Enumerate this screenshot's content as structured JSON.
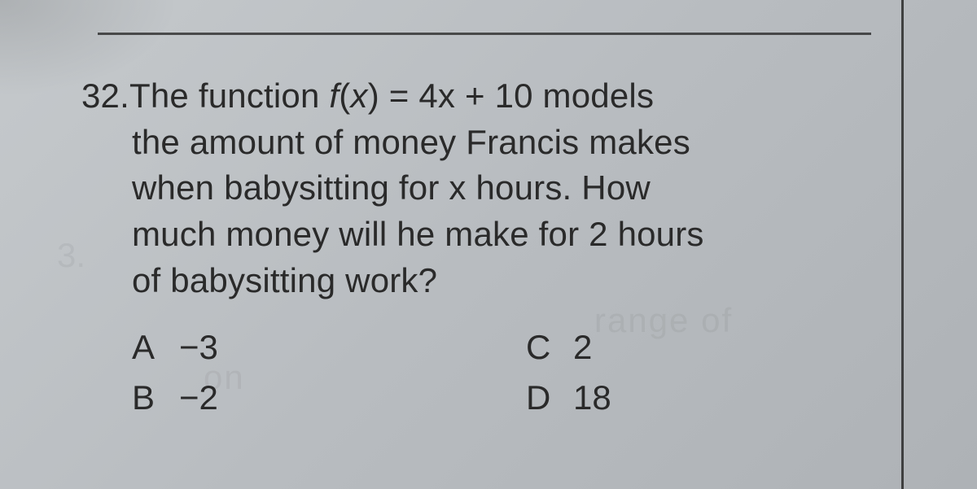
{
  "question": {
    "number": "32.",
    "line1_prefix": "The function ",
    "fn": "f",
    "fn_arg_open": "(",
    "fn_var": "x",
    "fn_arg_close": ")",
    "eq": " = 4x + 10 models",
    "line2": "the amount of money Francis makes",
    "line3": "when babysitting for x hours. How",
    "line4": "much money will he make for 2 hours",
    "line5": "of babysitting work?"
  },
  "choices": {
    "A": {
      "letter": "A",
      "value": "−3"
    },
    "B": {
      "letter": "B",
      "value": "−2"
    },
    "C": {
      "letter": "C",
      "value": "2"
    },
    "D": {
      "letter": "D",
      "value": "18"
    }
  },
  "ghost": {
    "g1": "range of",
    "g2": "on",
    "g3": "3."
  },
  "style": {
    "text_color": "#2a2a2a",
    "bg_from": "#c5c9cc",
    "bg_to": "#aeb2b6",
    "font_size_pt": 42,
    "rule_color": "#2a2a2a"
  }
}
